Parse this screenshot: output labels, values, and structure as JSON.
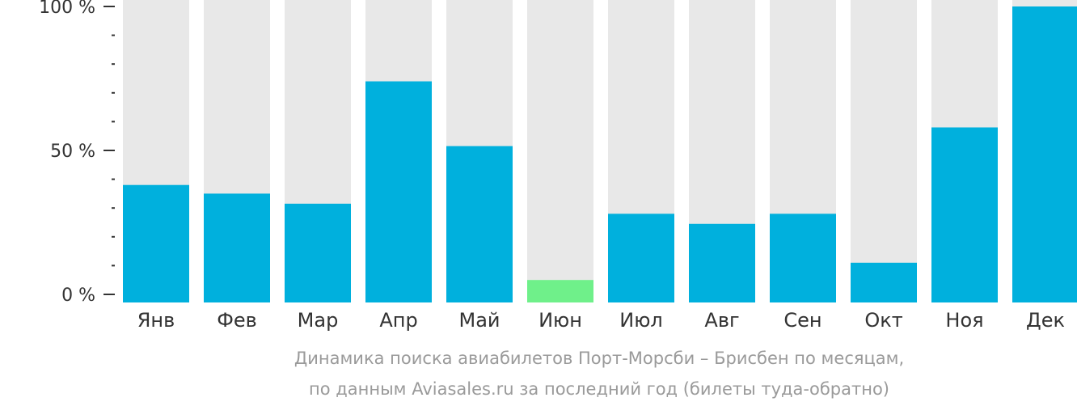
{
  "colors": {
    "bar": "#00b0dd",
    "bar_highlight": "#6ff08a",
    "track": "#e8e8e8",
    "axis": "#333333",
    "caption": "#9a9a9a"
  },
  "chart_data": {
    "type": "bar",
    "categories": [
      "Янв",
      "Фев",
      "Мар",
      "Апр",
      "Май",
      "Июн",
      "Июл",
      "Авг",
      "Сен",
      "Окт",
      "Ноя",
      "Дек"
    ],
    "values": [
      38,
      35,
      31.5,
      74,
      51.5,
      5,
      28,
      24.5,
      28,
      11,
      58,
      100
    ],
    "highlight_index": 5,
    "ylim": [
      0,
      100
    ],
    "yticks": [
      {
        "value": 100,
        "label": "100 %"
      },
      {
        "value": 50,
        "label": "50 %"
      },
      {
        "value": 0,
        "label": "0 %"
      }
    ],
    "minor_tick_step": 10,
    "title": "",
    "xlabel": "",
    "ylabel": "",
    "grid": false,
    "legend": "none"
  },
  "caption": {
    "line1": "Динамика поиска авиабилетов Порт-Морсби – Брисбен по месяцам,",
    "line2": "по данным Aviasales.ru за последний год (билеты туда-обратно)"
  }
}
